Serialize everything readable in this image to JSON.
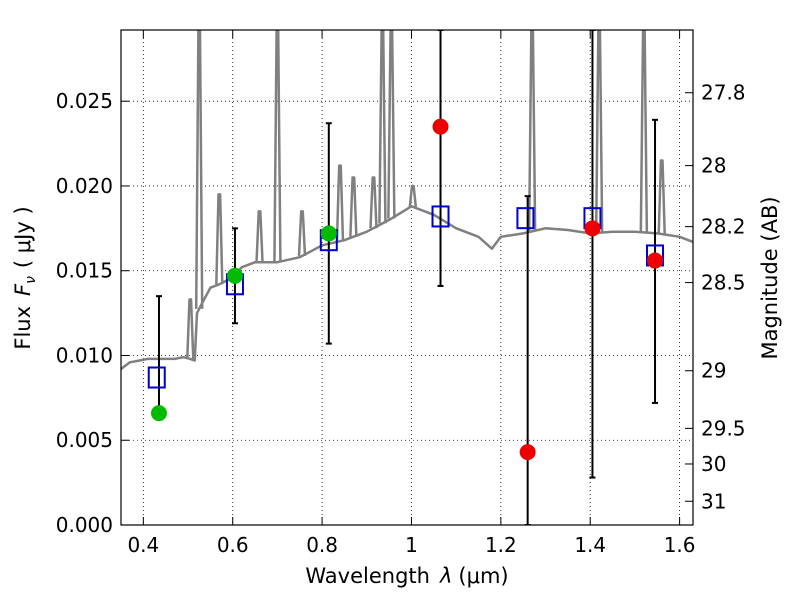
{
  "chart_data": {
    "type": "scatter",
    "xlabel_prefix": "Wavelength",
    "xlabel_symbol": "λ",
    "xlabel_unit": "(μm)",
    "ylabel_prefix": "Flux",
    "ylabel_symbol": "F",
    "ylabel_subscript": "ν",
    "ylabel_unit": "( μJy )",
    "y2label": "Magnitude (AB)",
    "xlim": [
      0.35,
      1.63
    ],
    "ylim": [
      0.0,
      0.0292
    ],
    "grid": true,
    "x_ticks": [
      {
        "value": 0.4,
        "label": "0.4"
      },
      {
        "value": 0.6,
        "label": "0.6"
      },
      {
        "value": 0.8,
        "label": "0.8"
      },
      {
        "value": 1.0,
        "label": "1"
      },
      {
        "value": 1.2,
        "label": "1.2"
      },
      {
        "value": 1.4,
        "label": "1.4"
      },
      {
        "value": 1.6,
        "label": "1.6"
      }
    ],
    "y_ticks": [
      {
        "value": 0.0,
        "label": "0.000"
      },
      {
        "value": 0.005,
        "label": "0.005"
      },
      {
        "value": 0.01,
        "label": "0.010"
      },
      {
        "value": 0.015,
        "label": "0.015"
      },
      {
        "value": 0.02,
        "label": "0.020"
      },
      {
        "value": 0.025,
        "label": "0.025"
      }
    ],
    "mag_ticks": [
      {
        "value": 0.0255,
        "label": "27.8"
      },
      {
        "value": 0.0212,
        "label": "28"
      },
      {
        "value": 0.0176,
        "label": "28.2"
      },
      {
        "value": 0.0143,
        "label": "28.5"
      },
      {
        "value": 0.0091,
        "label": "29"
      },
      {
        "value": 0.0057,
        "label": "29.5"
      },
      {
        "value": 0.0036,
        "label": "30"
      },
      {
        "value": 0.0014,
        "label": "31"
      }
    ],
    "model_color": "#808080",
    "model_spectrum": {
      "x": [
        0.35,
        0.37,
        0.39,
        0.41,
        0.43,
        0.45,
        0.47,
        0.49,
        0.505,
        0.515,
        0.52,
        0.53,
        0.55,
        0.57,
        0.6,
        0.62,
        0.65,
        0.7,
        0.75,
        0.8,
        0.85,
        0.9,
        0.95,
        1.0,
        1.03,
        1.05,
        1.1,
        1.15,
        1.18,
        1.2,
        1.25,
        1.3,
        1.35,
        1.4,
        1.45,
        1.5,
        1.55,
        1.6,
        1.63
      ],
      "y": [
        0.0092,
        0.0096,
        0.0097,
        0.0098,
        0.0098,
        0.0098,
        0.0098,
        0.0099,
        0.0098,
        0.0097,
        0.0125,
        0.013,
        0.014,
        0.0142,
        0.0146,
        0.0152,
        0.0155,
        0.0155,
        0.0158,
        0.0165,
        0.0168,
        0.0173,
        0.018,
        0.0188,
        0.0185,
        0.0183,
        0.0175,
        0.017,
        0.0163,
        0.017,
        0.0172,
        0.0175,
        0.0174,
        0.0172,
        0.0173,
        0.0173,
        0.0172,
        0.017,
        0.0167
      ],
      "emission_lines": [
        {
          "x": 0.505,
          "peak": 0.0133
        },
        {
          "x": 0.525,
          "peak": 0.0292
        },
        {
          "x": 0.57,
          "peak": 0.0195
        },
        {
          "x": 0.66,
          "peak": 0.0185
        },
        {
          "x": 0.7,
          "peak": 0.0292
        },
        {
          "x": 0.755,
          "peak": 0.0185
        },
        {
          "x": 0.84,
          "peak": 0.0212
        },
        {
          "x": 0.87,
          "peak": 0.0205
        },
        {
          "x": 0.915,
          "peak": 0.0205
        },
        {
          "x": 0.935,
          "peak": 0.0292
        },
        {
          "x": 0.955,
          "peak": 0.0292
        },
        {
          "x": 1.003,
          "peak": 0.02
        },
        {
          "x": 1.27,
          "peak": 0.0292
        },
        {
          "x": 1.42,
          "peak": 0.0292
        },
        {
          "x": 1.52,
          "peak": 0.0292
        },
        {
          "x": 1.56,
          "peak": 0.0215
        }
      ]
    },
    "model_photometry": {
      "marker": "open-square",
      "color": "#0000cc",
      "x": [
        0.43,
        0.605,
        0.815,
        1.065,
        1.255,
        1.405,
        1.545
      ],
      "y": [
        0.0087,
        0.0142,
        0.0168,
        0.0182,
        0.0181,
        0.0181,
        0.0159
      ]
    },
    "detections": {
      "marker": "filled-circle",
      "color": "#00bb00",
      "x": [
        0.435,
        0.605,
        0.815
      ],
      "y": [
        0.0066,
        0.0147,
        0.0172
      ],
      "err_low": [
        0.0066,
        0.0119,
        0.0107
      ],
      "err_high": [
        0.0135,
        0.0175,
        0.0237
      ]
    },
    "upper_limits": {
      "marker": "filled-circle",
      "color": "#ee0000",
      "x": [
        1.065,
        1.26,
        1.405,
        1.545
      ],
      "y": [
        0.0235,
        0.0043,
        0.0175,
        0.0156
      ],
      "err_low": [
        0.0141,
        0.0,
        0.0028,
        0.0072
      ],
      "err_high": [
        0.0292,
        0.0194,
        0.0292,
        0.0239
      ]
    }
  }
}
